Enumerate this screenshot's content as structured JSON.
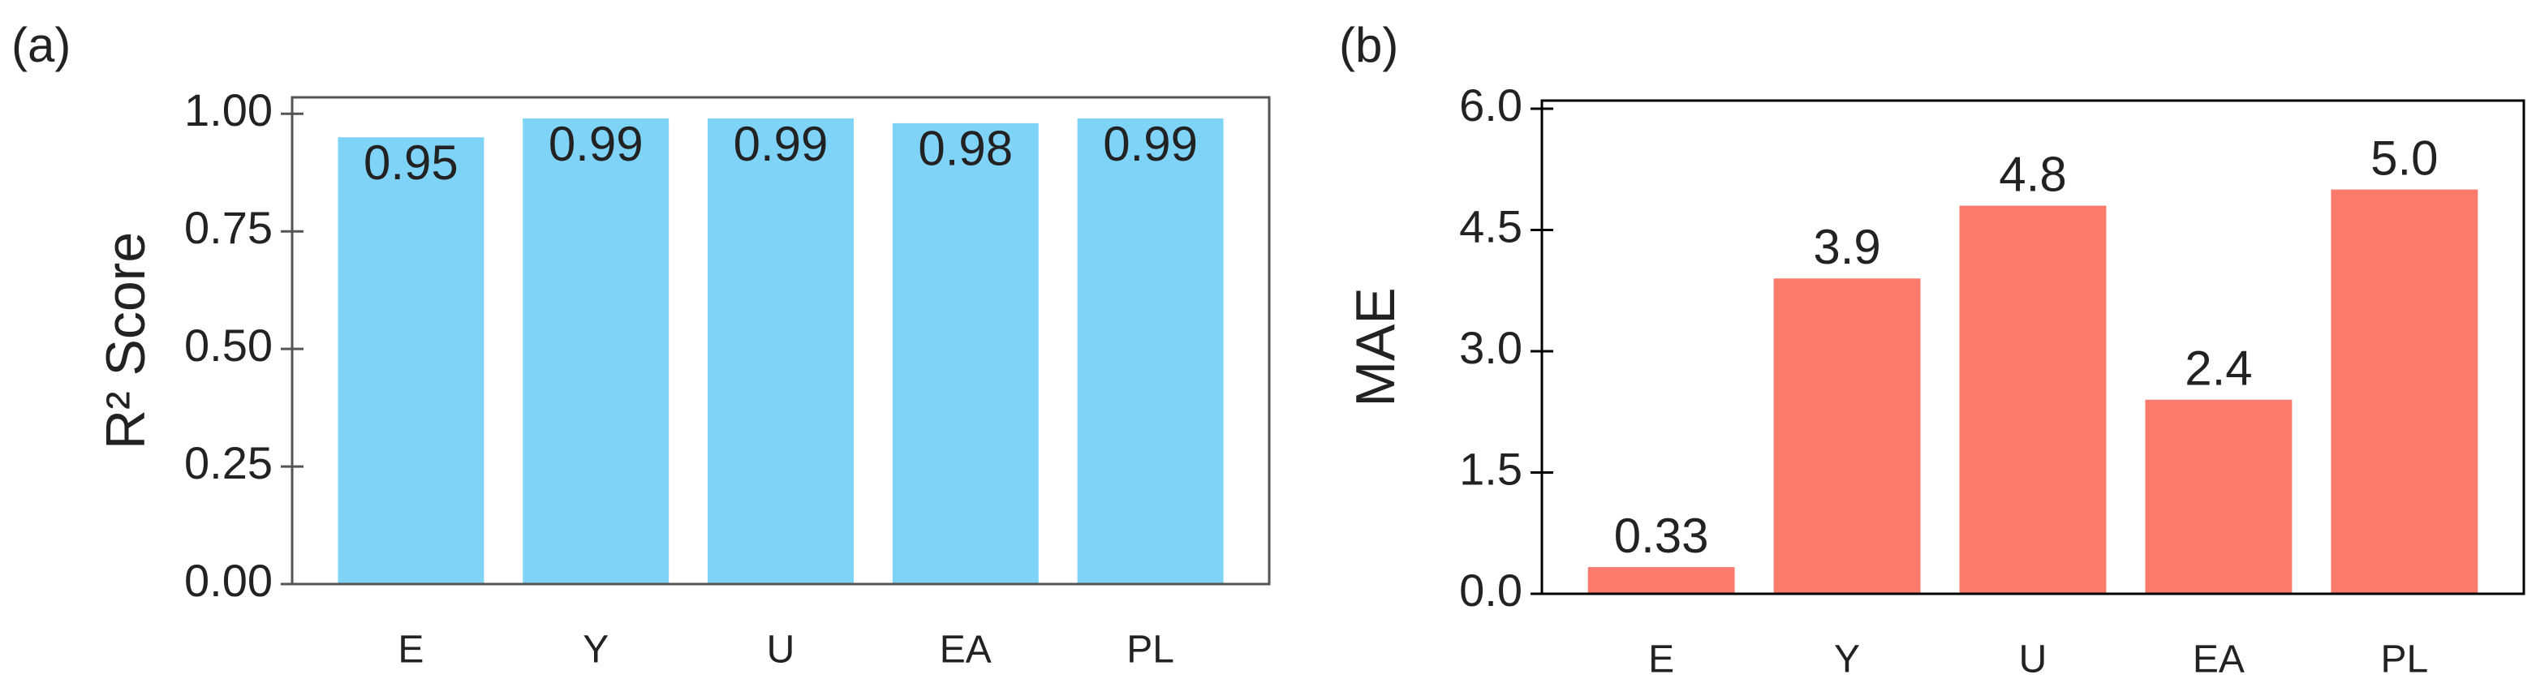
{
  "chart_data": [
    {
      "type": "bar",
      "label": "(a)",
      "y_label": "R² Score",
      "categories": [
        "E",
        "Y",
        "U",
        "EA",
        "PL"
      ],
      "values": [
        0.95,
        0.99,
        0.99,
        0.98,
        0.99
      ],
      "color": "#7fd3f7",
      "frame_color": "#555555",
      "label_position": "inside",
      "ylim": [
        0,
        1.035
      ],
      "yticks": [
        {
          "value": 0,
          "label": "0.00"
        },
        0.25,
        {
          "value": 0.5,
          "label": "0.50"
        },
        0.75,
        {
          "value": 1,
          "label": "1.00"
        }
      ]
    },
    {
      "type": "bar",
      "label": "(b)",
      "y_label": "MAE",
      "categories": [
        "E",
        "Y",
        "U",
        "EA",
        "PL"
      ],
      "values": [
        0.33,
        3.9,
        4.8,
        2.4,
        5.0
      ],
      "value_labels": [
        "0.33",
        "3.9",
        "4.8",
        "2.4",
        "5.0"
      ],
      "color": "#fa7b6c",
      "frame_color": "#000000",
      "label_position": "above",
      "ylim": [
        0,
        6.1
      ],
      "yticks": [
        {
          "value": 0,
          "label": "0.0"
        },
        1.5,
        {
          "value": 3,
          "label": "3.0"
        },
        4.5,
        {
          "value": 6,
          "label": "6.0"
        }
      ]
    }
  ]
}
